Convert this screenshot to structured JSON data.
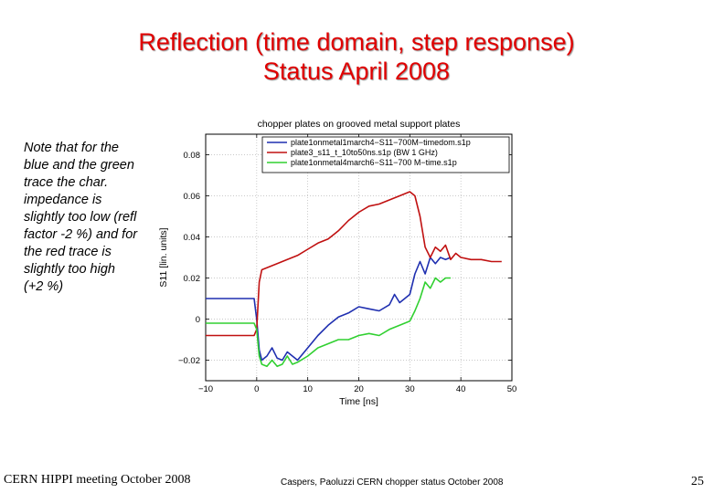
{
  "slide": {
    "title_line1": "Reflection (time domain, step response)",
    "title_line2": "Status April 2008",
    "note": "Note that for the blue and the green trace the char. impedance is slightly too low (refl factor -2 %) and for the red trace is slightly too high (+2 %)",
    "footer_left": "CERN HIPPI meeting October 2008",
    "footer_center": "Caspers, Paoluzzi CERN chopper status October 2008",
    "page_number": "25"
  },
  "chart_data": {
    "type": "line",
    "title": "chopper plates on grooved metal support plates",
    "xlabel": "Time [ns]",
    "ylabel": "S11 [lin. units]",
    "xlim": [
      -10,
      50
    ],
    "ylim": [
      -0.03,
      0.09
    ],
    "xticks": [
      -10,
      0,
      10,
      20,
      30,
      40,
      50
    ],
    "xtick_labels": [
      "−10",
      "0",
      "10",
      "20",
      "30",
      "40",
      "50"
    ],
    "yticks": [
      -0.02,
      0,
      0.02,
      0.04,
      0.06,
      0.08
    ],
    "ytick_labels": [
      "−0.02",
      "0",
      "0.02",
      "0.04",
      "0.06",
      "0.08"
    ],
    "grid": true,
    "legend_position": "top-right",
    "series": [
      {
        "name": "plate1onmetal1march4−S11−700M−timedom.s1p",
        "color": "#1f2fb0",
        "x": [
          -10,
          -6,
          -2,
          -0.5,
          0,
          0.5,
          1,
          2,
          3,
          4,
          5,
          6,
          7,
          8,
          10,
          12,
          14,
          16,
          18,
          20,
          22,
          24,
          26,
          27,
          28,
          29,
          30,
          31,
          32,
          33,
          34,
          35,
          36,
          37,
          38
        ],
        "y": [
          0.01,
          0.01,
          0.01,
          0.01,
          0.0,
          -0.015,
          -0.02,
          -0.018,
          -0.014,
          -0.019,
          -0.02,
          -0.016,
          -0.018,
          -0.02,
          -0.014,
          -0.008,
          -0.003,
          0.001,
          0.003,
          0.006,
          0.005,
          0.004,
          0.007,
          0.012,
          0.008,
          0.01,
          0.012,
          0.022,
          0.028,
          0.022,
          0.03,
          0.027,
          0.03,
          0.029,
          0.03
        ]
      },
      {
        "name": "plate3_s11_t_10to50ns.s1p (BW 1 GHz)",
        "color": "#c01010",
        "x": [
          -10,
          -6,
          -2,
          -0.5,
          0,
          0.5,
          1,
          2,
          4,
          6,
          8,
          10,
          12,
          14,
          16,
          18,
          20,
          22,
          24,
          26,
          28,
          30,
          31,
          32,
          33,
          34,
          35,
          36,
          37,
          38,
          39,
          40,
          42,
          44,
          46,
          48
        ],
        "y": [
          -0.008,
          -0.008,
          -0.008,
          -0.008,
          -0.005,
          0.018,
          0.024,
          0.025,
          0.027,
          0.029,
          0.031,
          0.034,
          0.037,
          0.039,
          0.043,
          0.048,
          0.052,
          0.055,
          0.056,
          0.058,
          0.06,
          0.062,
          0.06,
          0.05,
          0.035,
          0.03,
          0.035,
          0.033,
          0.036,
          0.029,
          0.032,
          0.03,
          0.029,
          0.029,
          0.028,
          0.028
        ]
      },
      {
        "name": "plate1onmetal4march6−S11−700 M−time.s1p",
        "color": "#30d030",
        "x": [
          -10,
          -6,
          -2,
          -0.5,
          0,
          0.5,
          1,
          2,
          3,
          4,
          5,
          6,
          7,
          8,
          10,
          12,
          14,
          16,
          18,
          20,
          22,
          24,
          26,
          28,
          30,
          31,
          32,
          33,
          34,
          35,
          36,
          37,
          38
        ],
        "y": [
          -0.002,
          -0.002,
          -0.002,
          -0.002,
          -0.005,
          -0.018,
          -0.022,
          -0.023,
          -0.02,
          -0.023,
          -0.022,
          -0.018,
          -0.022,
          -0.021,
          -0.018,
          -0.014,
          -0.012,
          -0.01,
          -0.01,
          -0.008,
          -0.007,
          -0.008,
          -0.005,
          -0.003,
          -0.001,
          0.004,
          0.01,
          0.018,
          0.015,
          0.02,
          0.018,
          0.02,
          0.02
        ]
      }
    ]
  }
}
